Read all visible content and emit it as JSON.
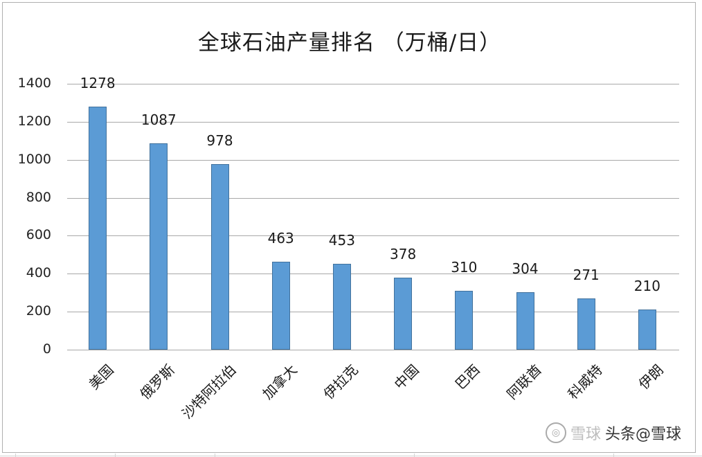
{
  "chart_data": {
    "type": "bar",
    "title": "全球石油产量排名 （万桶/日）",
    "categories": [
      "美国",
      "俄罗斯",
      "沙特阿拉伯",
      "加拿大",
      "伊拉克",
      "中国",
      "巴西",
      "阿联酋",
      "科威特",
      "伊朗"
    ],
    "values": [
      1278,
      1087,
      978,
      463,
      453,
      378,
      310,
      304,
      271,
      210
    ],
    "xlabel": "",
    "ylabel": "",
    "ylim": [
      0,
      1400
    ],
    "yticks": [
      0,
      200,
      400,
      600,
      800,
      1000,
      1200,
      1400
    ],
    "grid": true,
    "legend": null,
    "data_labels": true,
    "bar_color": "#5b9bd5",
    "bar_border_color": "#41719c"
  },
  "watermark": {
    "logo_text": "雪球",
    "text": "头条@雪球"
  }
}
